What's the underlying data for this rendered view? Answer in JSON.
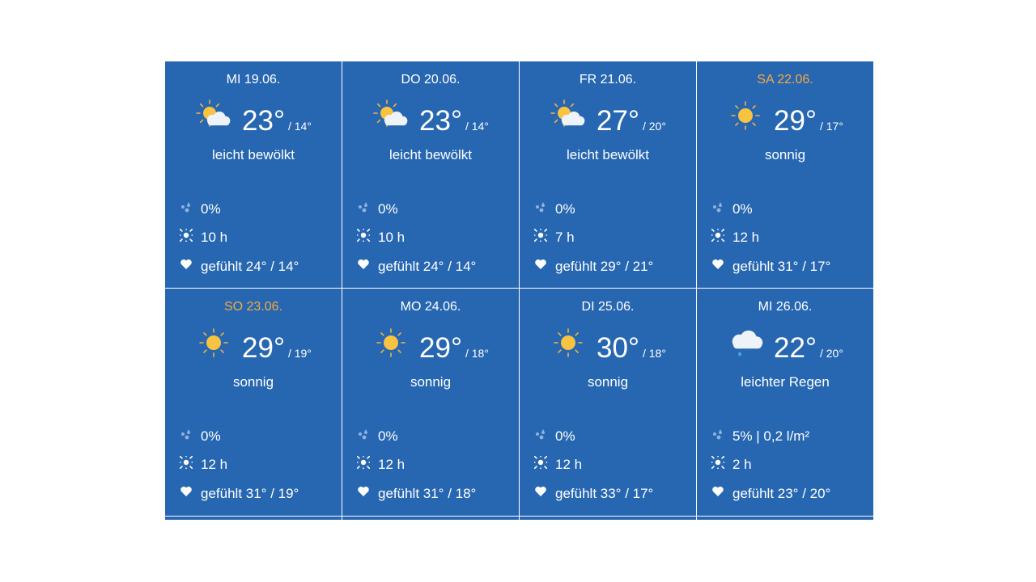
{
  "colors": {
    "tile": "#2767b1",
    "weekend": "#f5a940",
    "sun": "#f7c340"
  },
  "days": [
    {
      "date": "MI 19.06.",
      "weekend": false,
      "icon": "sun-cloud-icon",
      "high": "23°",
      "low": "/ 14°",
      "desc": "leicht bewölkt",
      "precip": "0%",
      "sun": "10 h",
      "feel": "gefühlt 24° / 14°"
    },
    {
      "date": "DO 20.06.",
      "weekend": false,
      "icon": "sun-cloud-icon",
      "high": "23°",
      "low": "/ 14°",
      "desc": "leicht bewölkt",
      "precip": "0%",
      "sun": "10 h",
      "feel": "gefühlt 24° / 14°"
    },
    {
      "date": "FR 21.06.",
      "weekend": false,
      "icon": "sun-cloud-icon",
      "high": "27°",
      "low": "/ 20°",
      "desc": "leicht bewölkt",
      "precip": "0%",
      "sun": "7 h",
      "feel": "gefühlt 29° / 21°"
    },
    {
      "date": "SA 22.06.",
      "weekend": true,
      "icon": "sun-icon",
      "high": "29°",
      "low": "/ 17°",
      "desc": "sonnig",
      "precip": "0%",
      "sun": "12 h",
      "feel": "gefühlt 31° / 17°"
    },
    {
      "date": "SO 23.06.",
      "weekend": true,
      "icon": "sun-icon",
      "high": "29°",
      "low": "/ 19°",
      "desc": "sonnig",
      "precip": "0%",
      "sun": "12 h",
      "feel": "gefühlt 31° / 19°"
    },
    {
      "date": "MO 24.06.",
      "weekend": false,
      "icon": "sun-icon",
      "high": "29°",
      "low": "/ 18°",
      "desc": "sonnig",
      "precip": "0%",
      "sun": "12 h",
      "feel": "gefühlt 31° / 18°"
    },
    {
      "date": "DI 25.06.",
      "weekend": false,
      "icon": "sun-icon",
      "high": "30°",
      "low": "/ 18°",
      "desc": "sonnig",
      "precip": "0%",
      "sun": "12 h",
      "feel": "gefühlt 33° / 17°"
    },
    {
      "date": "MI 26.06.",
      "weekend": false,
      "icon": "rain-cloud-icon",
      "high": "22°",
      "low": "/ 20°",
      "desc": "leichter Regen",
      "precip": "5% | 0,2 l/m²",
      "sun": "2 h",
      "feel": "gefühlt 23° / 20°"
    }
  ]
}
